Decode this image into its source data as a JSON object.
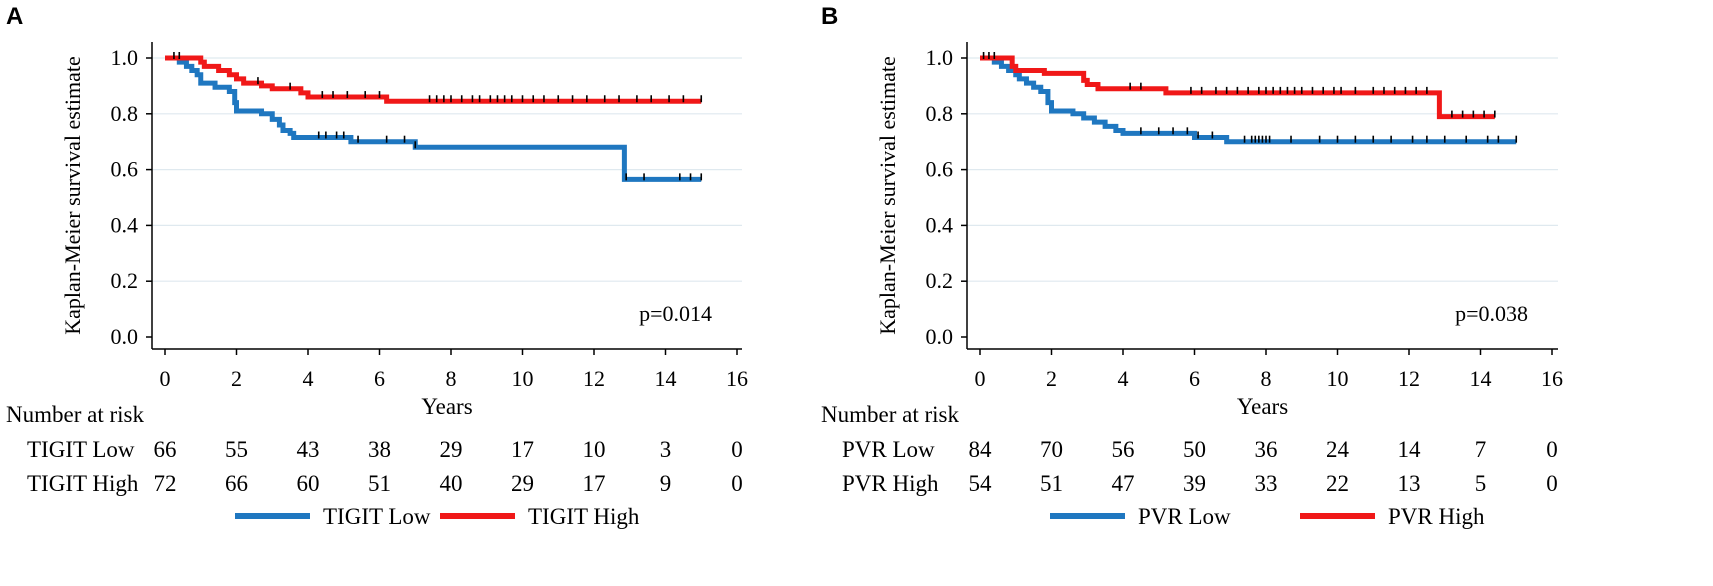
{
  "chart_data": [
    {
      "type": "line",
      "panel_label": "A",
      "ylabel": "Kaplan-Meier survival estimate",
      "xlabel": "Years",
      "xlim": [
        0,
        16
      ],
      "ylim": [
        0,
        1.0
      ],
      "x_ticks": [
        "0",
        "2",
        "4",
        "6",
        "8",
        "10",
        "12",
        "14",
        "16"
      ],
      "y_ticks": [
        "0.0",
        "0.2",
        "0.4",
        "0.6",
        "0.8",
        "1.0"
      ],
      "p_value": "p=0.014",
      "risk_title": "Number at risk",
      "series": [
        {
          "name": "TIGIT Low",
          "color": "#1f77c0",
          "steps": [
            [
              0,
              1.0
            ],
            [
              0.4,
              0.985
            ],
            [
              0.6,
              0.97
            ],
            [
              0.75,
              0.955
            ],
            [
              0.9,
              0.94
            ],
            [
              1.0,
              0.91
            ],
            [
              1.4,
              0.895
            ],
            [
              1.8,
              0.88
            ],
            [
              1.95,
              0.84
            ],
            [
              2.0,
              0.81
            ],
            [
              2.7,
              0.8
            ],
            [
              3.0,
              0.78
            ],
            [
              3.2,
              0.76
            ],
            [
              3.3,
              0.74
            ],
            [
              3.5,
              0.73
            ],
            [
              3.6,
              0.715
            ],
            [
              5.2,
              0.7
            ],
            [
              7.0,
              0.68
            ],
            [
              12.85,
              0.565
            ],
            [
              15.0,
              0.565
            ]
          ],
          "censor": [
            4.3,
            4.5,
            4.8,
            5.0,
            5.4,
            6.2,
            6.7,
            7.0,
            12.9,
            13.4,
            14.4,
            14.7,
            15.0
          ],
          "at_risk": [
            "66",
            "55",
            "43",
            "38",
            "29",
            "17",
            "10",
            "3",
            "0"
          ]
        },
        {
          "name": "TIGIT High",
          "color": "#f01818",
          "steps": [
            [
              0,
              1.0
            ],
            [
              1.0,
              0.985
            ],
            [
              1.1,
              0.97
            ],
            [
              1.5,
              0.955
            ],
            [
              1.8,
              0.94
            ],
            [
              2.0,
              0.925
            ],
            [
              2.2,
              0.91
            ],
            [
              2.7,
              0.9
            ],
            [
              3.0,
              0.89
            ],
            [
              3.8,
              0.875
            ],
            [
              4.0,
              0.86
            ],
            [
              6.2,
              0.845
            ],
            [
              15.0,
              0.845
            ]
          ],
          "censor": [
            0.25,
            0.4,
            2.6,
            3.5,
            4.4,
            4.7,
            5.1,
            5.6,
            6.0,
            7.4,
            7.6,
            7.8,
            8.0,
            8.3,
            8.6,
            8.8,
            9.1,
            9.3,
            9.5,
            9.7,
            10.0,
            10.3,
            10.6,
            11.0,
            11.4,
            11.8,
            12.3,
            12.7,
            13.2,
            13.6,
            14.1,
            14.5,
            15.0
          ],
          "at_risk": [
            "72",
            "66",
            "60",
            "51",
            "40",
            "29",
            "17",
            "9",
            "0"
          ]
        }
      ]
    },
    {
      "type": "line",
      "panel_label": "B",
      "ylabel": "Kaplan-Meier survival estimate",
      "xlabel": "Years",
      "xlim": [
        0,
        16
      ],
      "ylim": [
        0,
        1.0
      ],
      "x_ticks": [
        "0",
        "2",
        "4",
        "6",
        "8",
        "10",
        "12",
        "14",
        "16"
      ],
      "y_ticks": [
        "0.0",
        "0.2",
        "0.4",
        "0.6",
        "0.8",
        "1.0"
      ],
      "p_value": "p=0.038",
      "risk_title": "Number at risk",
      "series": [
        {
          "name": "PVR Low",
          "color": "#1f77c0",
          "steps": [
            [
              0,
              1.0
            ],
            [
              0.4,
              0.985
            ],
            [
              0.6,
              0.97
            ],
            [
              0.8,
              0.955
            ],
            [
              1.0,
              0.94
            ],
            [
              1.1,
              0.925
            ],
            [
              1.3,
              0.91
            ],
            [
              1.5,
              0.895
            ],
            [
              1.7,
              0.88
            ],
            [
              1.9,
              0.84
            ],
            [
              2.0,
              0.81
            ],
            [
              2.6,
              0.8
            ],
            [
              2.9,
              0.785
            ],
            [
              3.2,
              0.77
            ],
            [
              3.5,
              0.755
            ],
            [
              3.8,
              0.74
            ],
            [
              4.0,
              0.73
            ],
            [
              6.0,
              0.715
            ],
            [
              6.9,
              0.7
            ],
            [
              15.0,
              0.7
            ]
          ],
          "censor": [
            0.1,
            4.5,
            5.0,
            5.4,
            5.8,
            6.1,
            6.5,
            7.4,
            7.6,
            7.7,
            7.8,
            7.9,
            8.0,
            8.1,
            8.7,
            9.5,
            10.0,
            10.5,
            11.0,
            11.5,
            12.1,
            12.5,
            13.0,
            13.6,
            14.2,
            14.5,
            15.0
          ],
          "at_risk": [
            "84",
            "70",
            "56",
            "50",
            "36",
            "24",
            "14",
            "7",
            "0"
          ]
        },
        {
          "name": "PVR High",
          "color": "#f01818",
          "steps": [
            [
              0,
              1.0
            ],
            [
              0.9,
              0.97
            ],
            [
              1.0,
              0.955
            ],
            [
              1.8,
              0.945
            ],
            [
              2.9,
              0.92
            ],
            [
              3.0,
              0.905
            ],
            [
              3.3,
              0.89
            ],
            [
              5.2,
              0.875
            ],
            [
              12.85,
              0.79
            ],
            [
              14.4,
              0.79
            ]
          ],
          "censor": [
            0.25,
            0.4,
            4.2,
            4.5,
            5.9,
            6.2,
            6.6,
            6.9,
            7.2,
            7.5,
            7.8,
            8.0,
            8.2,
            8.4,
            8.6,
            8.8,
            9.0,
            9.3,
            9.6,
            9.9,
            10.1,
            10.5,
            11.0,
            11.3,
            11.6,
            11.9,
            12.2,
            12.5,
            13.2,
            13.5,
            13.8,
            14.1,
            14.4
          ],
          "at_risk": [
            "54",
            "51",
            "47",
            "39",
            "33",
            "22",
            "13",
            "5",
            "0"
          ]
        }
      ]
    }
  ]
}
